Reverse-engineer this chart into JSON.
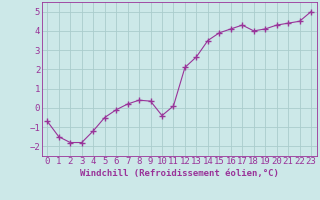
{
  "x": [
    0,
    1,
    2,
    3,
    4,
    5,
    6,
    7,
    8,
    9,
    10,
    11,
    12,
    13,
    14,
    15,
    16,
    17,
    18,
    19,
    20,
    21,
    22,
    23
  ],
  "y": [
    -0.7,
    -1.5,
    -1.8,
    -1.8,
    -1.2,
    -0.5,
    -0.1,
    0.2,
    0.4,
    0.35,
    -0.4,
    0.1,
    2.1,
    2.65,
    3.5,
    3.9,
    4.1,
    4.3,
    4.0,
    4.1,
    4.3,
    4.4,
    4.5,
    5.0
  ],
  "line_color": "#993399",
  "marker": "+",
  "marker_size": 4,
  "bg_color": "#cce8e8",
  "grid_color": "#aacccc",
  "xlabel": "Windchill (Refroidissement éolien,°C)",
  "xlabel_color": "#993399",
  "tick_color": "#993399",
  "ylim": [
    -2.5,
    5.5
  ],
  "xlim": [
    -0.5,
    23.5
  ],
  "yticks": [
    -2,
    -1,
    0,
    1,
    2,
    3,
    4,
    5
  ],
  "xtick_labels": [
    "0",
    "1",
    "2",
    "3",
    "4",
    "5",
    "6",
    "7",
    "8",
    "9",
    "10",
    "11",
    "12",
    "13",
    "14",
    "15",
    "16",
    "17",
    "18",
    "19",
    "20",
    "21",
    "22",
    "23"
  ],
  "label_fontsize": 6.5,
  "tick_fontsize": 6.5
}
